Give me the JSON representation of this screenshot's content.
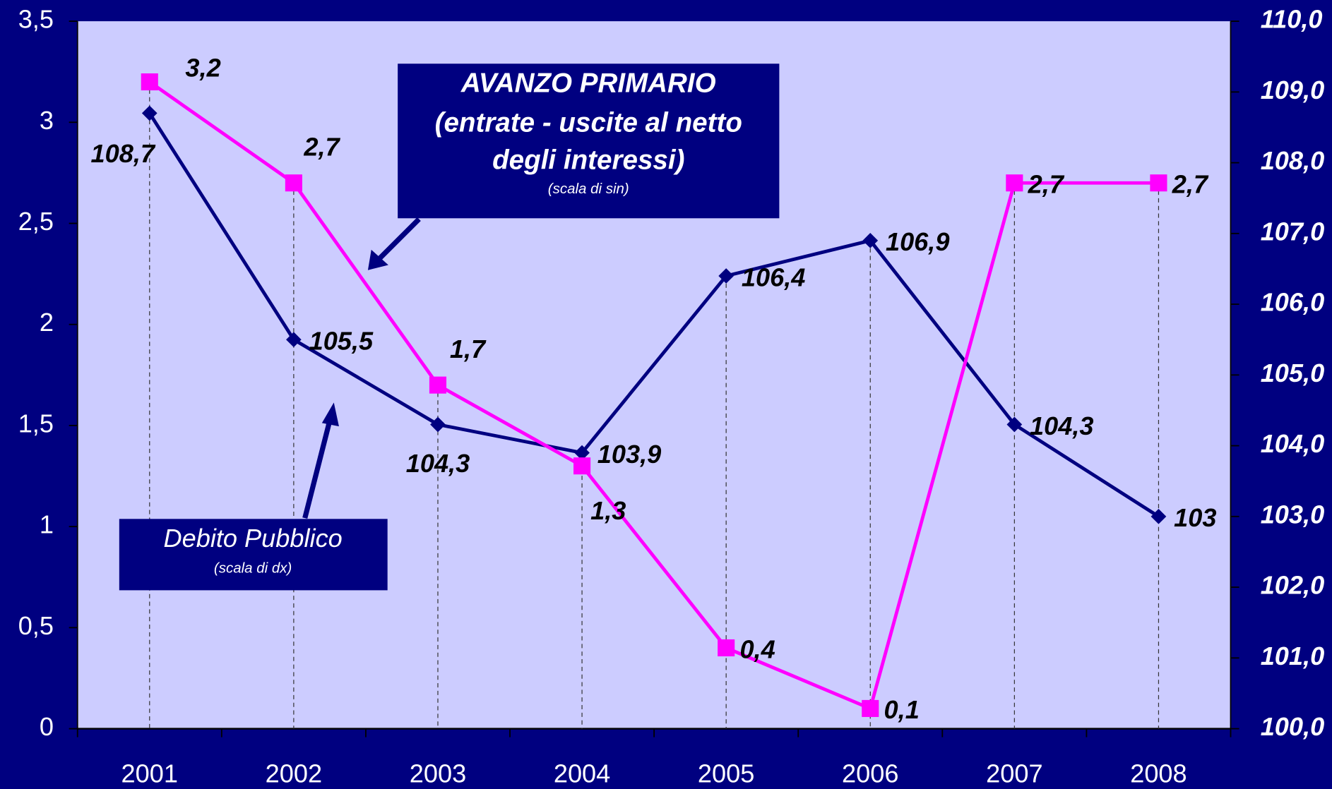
{
  "chart_data": {
    "type": "line",
    "categories": [
      "2001",
      "2002",
      "2003",
      "2004",
      "2005",
      "2006",
      "2007",
      "2008"
    ],
    "series": [
      {
        "name": "AVANZO PRIMARIO",
        "color": "#ff00ff",
        "axis": "y",
        "values": [
          3.2,
          2.7,
          1.7,
          1.3,
          0.4,
          0.1,
          2.7,
          2.7
        ],
        "value_labels": [
          "3,2",
          "2,7",
          "1,7",
          "1,3",
          "0,4",
          "0,1",
          "2,7",
          "2,7"
        ]
      },
      {
        "name": "Debito Pubblico",
        "color": "#000080",
        "axis": "y2",
        "values": [
          108.7,
          105.5,
          104.3,
          103.9,
          106.4,
          106.9,
          104.3,
          103
        ],
        "value_labels": [
          "108,7",
          "105,5",
          "104,3",
          "103,9",
          "106,4",
          "106,9",
          "104,3",
          "103"
        ]
      }
    ],
    "annotations": [
      "(entrate - uscite al netto degli interessi)",
      "(scala di sin)",
      "(scala di dx)"
    ],
    "ylim": [
      0,
      3.5
    ],
    "yticks": [
      0,
      {
        "value": 0.5,
        "label": "0,5"
      },
      1,
      {
        "value": 1.5,
        "label": "1,5"
      },
      2,
      {
        "value": 2.5,
        "label": "2,5"
      },
      3,
      {
        "value": 3.5,
        "label": "3,5"
      }
    ],
    "y2lim": [
      100,
      110
    ],
    "y2ticks": [
      {
        "value": 100,
        "label": "100,0"
      },
      {
        "value": 101,
        "label": "101,0"
      },
      {
        "value": 102,
        "label": "102,0"
      },
      {
        "value": 103,
        "label": "103,0"
      },
      {
        "value": 104,
        "label": "104,0"
      },
      {
        "value": 105,
        "label": "105,0"
      },
      {
        "value": 106,
        "label": "106,0"
      },
      {
        "value": 107,
        "label": "107,0"
      },
      {
        "value": 108,
        "label": "108,0"
      },
      {
        "value": 109,
        "label": "109,0"
      },
      {
        "value": 110,
        "label": "110,0"
      }
    ]
  }
}
